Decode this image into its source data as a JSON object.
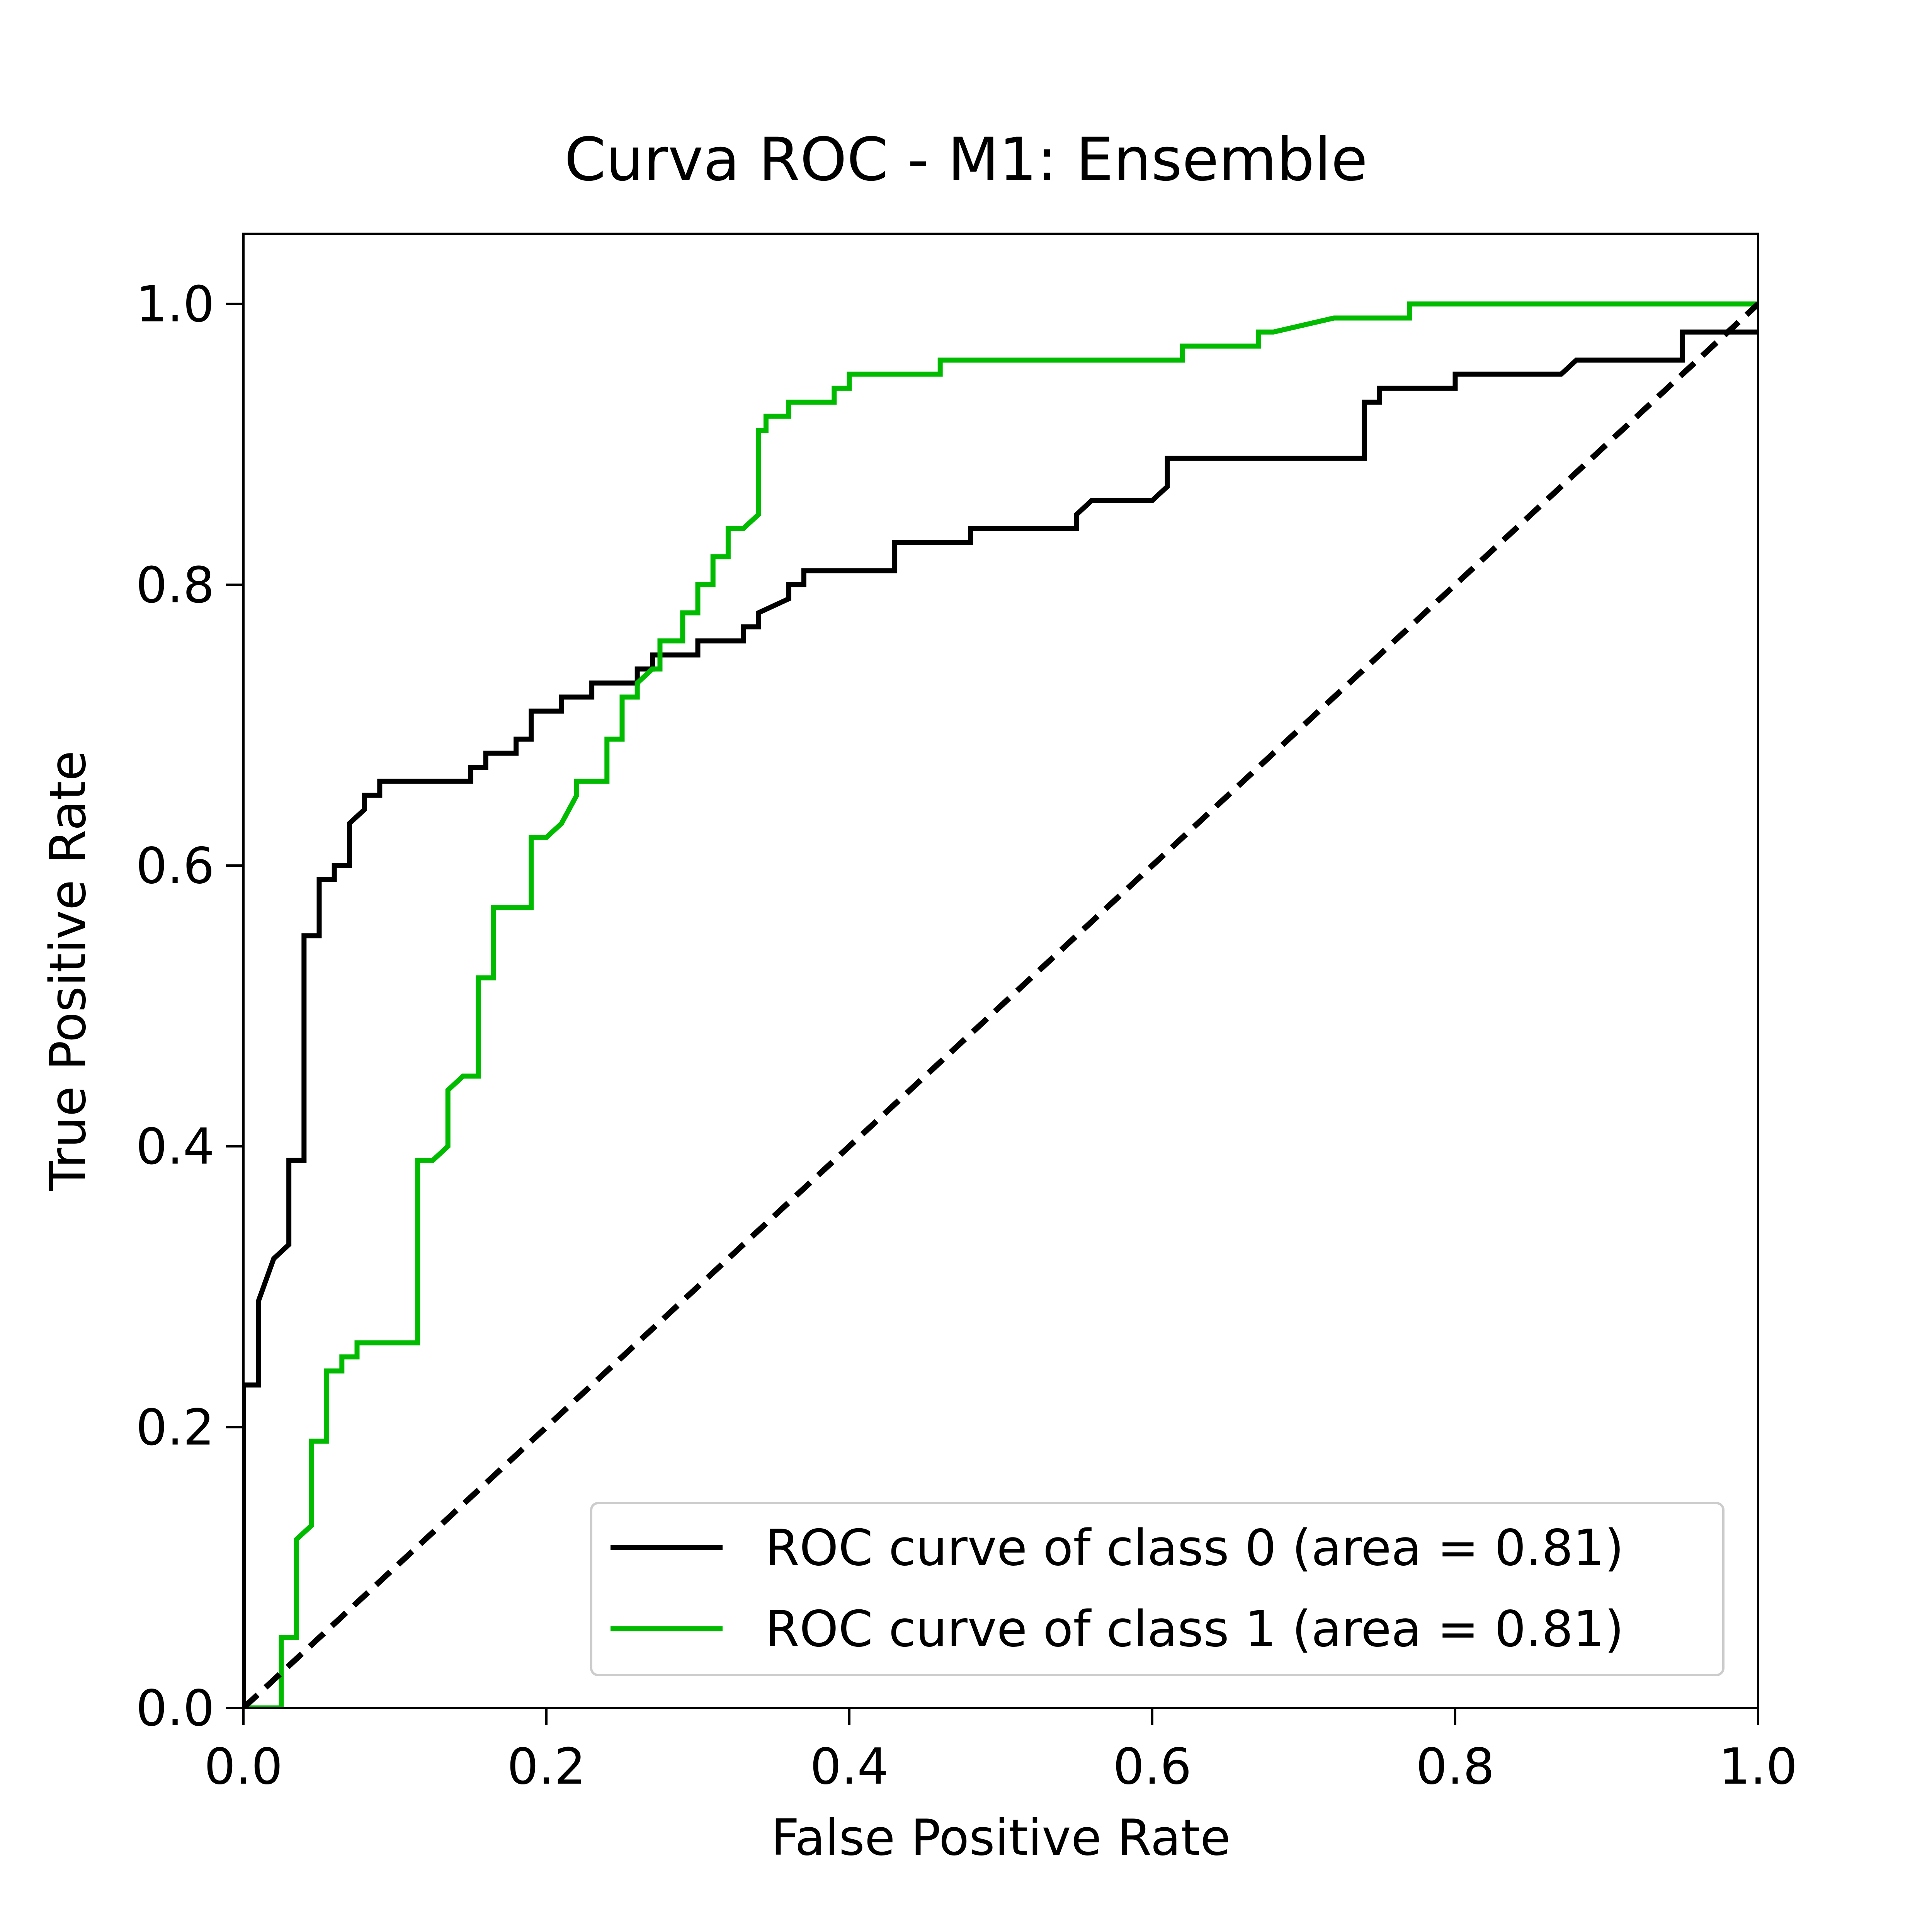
{
  "chart_data": {
    "type": "line",
    "title": "Curva ROC - M1: Ensemble",
    "xlabel": "False Positive Rate",
    "ylabel": "True Positive Rate",
    "xlim": [
      0.0,
      1.0
    ],
    "ylim": [
      0.0,
      1.05
    ],
    "xticks": [
      "0.0",
      "0.2",
      "0.4",
      "0.6",
      "0.8",
      "1.0"
    ],
    "yticks": [
      "0.0",
      "0.2",
      "0.4",
      "0.6",
      "0.8",
      "1.0"
    ],
    "grid": false,
    "legend_position": "lower-right",
    "series": [
      {
        "name": "ROC curve of class 0 (area = 0.81)",
        "color": "#000000",
        "style": "solid",
        "x": [
          0.0,
          0.0,
          0.01,
          0.01,
          0.02,
          0.03,
          0.03,
          0.04,
          0.04,
          0.05,
          0.05,
          0.06,
          0.06,
          0.07,
          0.07,
          0.08,
          0.08,
          0.09,
          0.09,
          0.15,
          0.15,
          0.16,
          0.16,
          0.18,
          0.18,
          0.19,
          0.19,
          0.21,
          0.21,
          0.23,
          0.23,
          0.26,
          0.26,
          0.27,
          0.27,
          0.3,
          0.3,
          0.33,
          0.33,
          0.34,
          0.34,
          0.36,
          0.36,
          0.37,
          0.37,
          0.43,
          0.43,
          0.48,
          0.48,
          0.55,
          0.55,
          0.56,
          0.56,
          0.6,
          0.61,
          0.61,
          0.74,
          0.74,
          0.75,
          0.75,
          0.8,
          0.8,
          0.87,
          0.88,
          0.95,
          0.95,
          1.0
        ],
        "y": [
          0.0,
          0.23,
          0.23,
          0.29,
          0.32,
          0.33,
          0.39,
          0.39,
          0.55,
          0.55,
          0.59,
          0.59,
          0.6,
          0.6,
          0.63,
          0.64,
          0.65,
          0.65,
          0.66,
          0.66,
          0.67,
          0.67,
          0.68,
          0.68,
          0.69,
          0.69,
          0.71,
          0.71,
          0.72,
          0.72,
          0.73,
          0.73,
          0.74,
          0.74,
          0.75,
          0.75,
          0.76,
          0.76,
          0.77,
          0.77,
          0.78,
          0.79,
          0.8,
          0.8,
          0.81,
          0.81,
          0.83,
          0.83,
          0.84,
          0.84,
          0.85,
          0.86,
          0.86,
          0.86,
          0.87,
          0.89,
          0.89,
          0.93,
          0.93,
          0.94,
          0.94,
          0.95,
          0.95,
          0.96,
          0.96,
          0.98,
          0.98
        ]
      },
      {
        "name": "ROC curve of class 1 (area = 0.81)",
        "color": "#00bb00",
        "style": "solid",
        "x": [
          0.0,
          0.025,
          0.025,
          0.035,
          0.035,
          0.045,
          0.045,
          0.055,
          0.055,
          0.065,
          0.065,
          0.075,
          0.075,
          0.115,
          0.115,
          0.125,
          0.135,
          0.135,
          0.145,
          0.155,
          0.155,
          0.165,
          0.165,
          0.18,
          0.18,
          0.19,
          0.19,
          0.2,
          0.21,
          0.22,
          0.22,
          0.23,
          0.23,
          0.24,
          0.24,
          0.25,
          0.25,
          0.26,
          0.26,
          0.27,
          0.275,
          0.275,
          0.29,
          0.29,
          0.3,
          0.3,
          0.31,
          0.31,
          0.32,
          0.32,
          0.33,
          0.34,
          0.34,
          0.345,
          0.345,
          0.36,
          0.36,
          0.375,
          0.375,
          0.39,
          0.39,
          0.4,
          0.4,
          0.41,
          0.41,
          0.46,
          0.46,
          0.62,
          0.62,
          0.67,
          0.67,
          0.68,
          0.68,
          0.72,
          0.72,
          0.77,
          0.77,
          1.0
        ],
        "y": [
          0.0,
          0.0,
          0.05,
          0.05,
          0.12,
          0.13,
          0.19,
          0.19,
          0.24,
          0.24,
          0.25,
          0.25,
          0.26,
          0.26,
          0.39,
          0.39,
          0.4,
          0.44,
          0.45,
          0.45,
          0.52,
          0.52,
          0.57,
          0.57,
          0.57,
          0.57,
          0.62,
          0.62,
          0.63,
          0.65,
          0.66,
          0.66,
          0.66,
          0.66,
          0.69,
          0.69,
          0.72,
          0.72,
          0.73,
          0.74,
          0.74,
          0.76,
          0.76,
          0.78,
          0.78,
          0.8,
          0.8,
          0.82,
          0.82,
          0.84,
          0.84,
          0.85,
          0.91,
          0.91,
          0.92,
          0.92,
          0.93,
          0.93,
          0.93,
          0.93,
          0.94,
          0.94,
          0.95,
          0.95,
          0.95,
          0.95,
          0.96,
          0.96,
          0.97,
          0.97,
          0.98,
          0.98,
          0.98,
          0.99,
          0.99,
          0.99,
          1.0,
          1.0
        ]
      },
      {
        "color": "#000000",
        "style": "dashed",
        "x": [
          0.0,
          1.0
        ],
        "y": [
          0.0,
          1.0
        ]
      }
    ]
  }
}
